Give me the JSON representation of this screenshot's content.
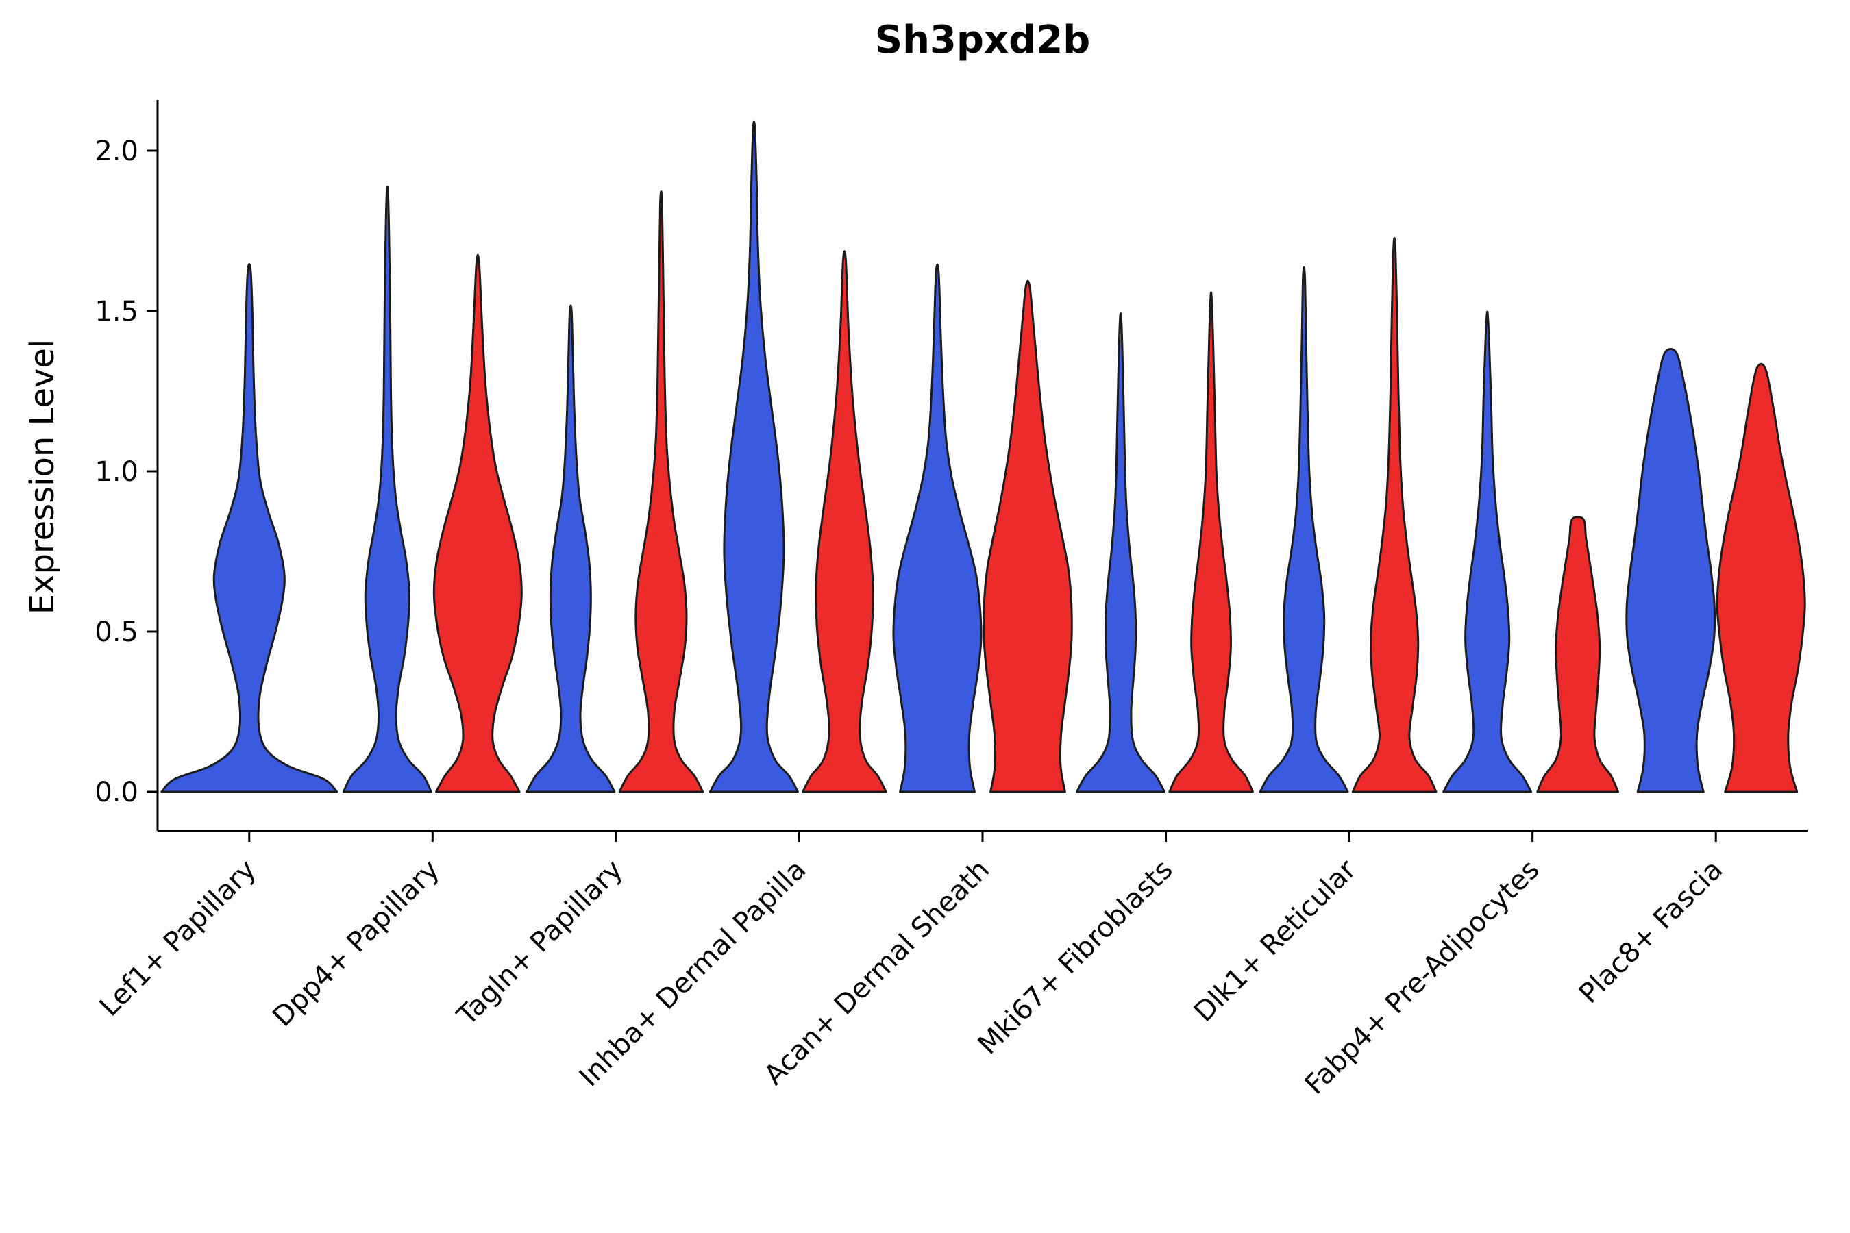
{
  "chart_data": {
    "type": "violin",
    "title": "Sh3pxd2b",
    "ylabel": "Expression Level",
    "xlabel": "",
    "ylim": [
      0,
      2.1
    ],
    "grid": false,
    "legend": "none",
    "yticks": [
      0.0,
      0.5,
      1.0,
      1.5,
      2.0
    ],
    "ytick_labels": [
      "0.0",
      "0.5",
      "1.0",
      "1.5",
      "2.0"
    ],
    "categories": [
      "Lef1+ Papillary",
      "Dpp4+ Papillary",
      "Tagln+ Papillary",
      "Inhba+ Dermal Papilla",
      "Acan+ Dermal Sheath",
      "Mki67+ Fibroblasts",
      "Dlk1+ Reticular",
      "Fabp4+ Pre-Adipocytes",
      "Plac8+ Fascia"
    ],
    "group_colors": {
      "blue": "#3A5BE0",
      "red": "#EE2B2B"
    },
    "outline_color": "#1c1c1c",
    "axis_color": "#000000",
    "violins": [
      {
        "category": "Lef1+ Papillary",
        "group": "blue",
        "side": 0,
        "span": 2,
        "max": 1.63,
        "profile": [
          [
            0,
            1.0
          ],
          [
            0.04,
            0.85
          ],
          [
            0.08,
            0.45
          ],
          [
            0.13,
            0.2
          ],
          [
            0.2,
            0.11
          ],
          [
            0.3,
            0.12
          ],
          [
            0.4,
            0.2
          ],
          [
            0.5,
            0.3
          ],
          [
            0.6,
            0.38
          ],
          [
            0.68,
            0.4
          ],
          [
            0.78,
            0.33
          ],
          [
            0.88,
            0.21
          ],
          [
            0.98,
            0.12
          ],
          [
            1.12,
            0.075
          ],
          [
            1.3,
            0.05
          ],
          [
            1.5,
            0.035
          ],
          [
            1.63,
            0.015
          ]
        ]
      },
      {
        "category": "Dpp4+ Papillary",
        "group": "blue",
        "side": -1,
        "span": 1,
        "max": 1.85,
        "profile": [
          [
            0,
            1.0
          ],
          [
            0.05,
            0.82
          ],
          [
            0.1,
            0.48
          ],
          [
            0.16,
            0.26
          ],
          [
            0.24,
            0.2
          ],
          [
            0.33,
            0.26
          ],
          [
            0.42,
            0.38
          ],
          [
            0.52,
            0.47
          ],
          [
            0.62,
            0.5
          ],
          [
            0.72,
            0.43
          ],
          [
            0.82,
            0.3
          ],
          [
            0.92,
            0.19
          ],
          [
            1.05,
            0.12
          ],
          [
            1.25,
            0.08
          ],
          [
            1.55,
            0.06
          ],
          [
            1.85,
            0.02
          ]
        ]
      },
      {
        "category": "Dpp4+ Papillary",
        "group": "red",
        "side": 1,
        "span": 1,
        "max": 1.65,
        "profile": [
          [
            0,
            0.95
          ],
          [
            0.05,
            0.75
          ],
          [
            0.1,
            0.48
          ],
          [
            0.16,
            0.34
          ],
          [
            0.24,
            0.38
          ],
          [
            0.33,
            0.56
          ],
          [
            0.42,
            0.78
          ],
          [
            0.52,
            0.93
          ],
          [
            0.62,
            1.0
          ],
          [
            0.72,
            0.94
          ],
          [
            0.82,
            0.78
          ],
          [
            0.92,
            0.58
          ],
          [
            1.02,
            0.4
          ],
          [
            1.14,
            0.27
          ],
          [
            1.28,
            0.17
          ],
          [
            1.45,
            0.1
          ],
          [
            1.65,
            0.03
          ]
        ]
      },
      {
        "category": "Tagln+ Papillary",
        "group": "blue",
        "side": -1,
        "span": 1,
        "max": 1.5,
        "profile": [
          [
            0,
            1.0
          ],
          [
            0.05,
            0.8
          ],
          [
            0.1,
            0.48
          ],
          [
            0.16,
            0.28
          ],
          [
            0.24,
            0.22
          ],
          [
            0.33,
            0.28
          ],
          [
            0.42,
            0.37
          ],
          [
            0.52,
            0.44
          ],
          [
            0.62,
            0.46
          ],
          [
            0.72,
            0.42
          ],
          [
            0.82,
            0.32
          ],
          [
            0.92,
            0.2
          ],
          [
            1.04,
            0.13
          ],
          [
            1.2,
            0.08
          ],
          [
            1.36,
            0.05
          ],
          [
            1.5,
            0.02
          ]
        ]
      },
      {
        "category": "Tagln+ Papillary",
        "group": "red",
        "side": 1,
        "span": 1,
        "max": 1.84,
        "profile": [
          [
            0,
            0.95
          ],
          [
            0.05,
            0.76
          ],
          [
            0.1,
            0.46
          ],
          [
            0.16,
            0.3
          ],
          [
            0.25,
            0.3
          ],
          [
            0.35,
            0.42
          ],
          [
            0.45,
            0.54
          ],
          [
            0.55,
            0.58
          ],
          [
            0.65,
            0.53
          ],
          [
            0.75,
            0.41
          ],
          [
            0.85,
            0.29
          ],
          [
            0.97,
            0.19
          ],
          [
            1.1,
            0.12
          ],
          [
            1.3,
            0.08
          ],
          [
            1.58,
            0.05
          ],
          [
            1.84,
            0.02
          ]
        ]
      },
      {
        "category": "Inhba+ Dermal Papilla",
        "group": "blue",
        "side": -1,
        "span": 1,
        "max": 2.07,
        "profile": [
          [
            0,
            1.0
          ],
          [
            0.05,
            0.8
          ],
          [
            0.1,
            0.48
          ],
          [
            0.18,
            0.3
          ],
          [
            0.3,
            0.35
          ],
          [
            0.45,
            0.5
          ],
          [
            0.6,
            0.62
          ],
          [
            0.75,
            0.68
          ],
          [
            0.9,
            0.64
          ],
          [
            1.05,
            0.54
          ],
          [
            1.2,
            0.4
          ],
          [
            1.35,
            0.26
          ],
          [
            1.52,
            0.15
          ],
          [
            1.7,
            0.09
          ],
          [
            1.9,
            0.06
          ],
          [
            2.07,
            0.02
          ]
        ]
      },
      {
        "category": "Inhba+ Dermal Papilla",
        "group": "red",
        "side": 1,
        "span": 1,
        "max": 1.66,
        "profile": [
          [
            0,
            0.95
          ],
          [
            0.05,
            0.76
          ],
          [
            0.1,
            0.48
          ],
          [
            0.18,
            0.35
          ],
          [
            0.28,
            0.4
          ],
          [
            0.4,
            0.54
          ],
          [
            0.52,
            0.63
          ],
          [
            0.64,
            0.65
          ],
          [
            0.76,
            0.59
          ],
          [
            0.88,
            0.48
          ],
          [
            1.0,
            0.36
          ],
          [
            1.12,
            0.26
          ],
          [
            1.26,
            0.17
          ],
          [
            1.45,
            0.09
          ],
          [
            1.66,
            0.03
          ]
        ]
      },
      {
        "category": "Acan+ Dermal Sheath",
        "group": "blue",
        "side": -1,
        "span": 1,
        "max": 1.62,
        "profile": [
          [
            0,
            0.85
          ],
          [
            0.08,
            0.74
          ],
          [
            0.18,
            0.73
          ],
          [
            0.28,
            0.82
          ],
          [
            0.38,
            0.93
          ],
          [
            0.48,
            1.0
          ],
          [
            0.58,
            0.97
          ],
          [
            0.68,
            0.88
          ],
          [
            0.78,
            0.7
          ],
          [
            0.88,
            0.5
          ],
          [
            0.98,
            0.33
          ],
          [
            1.1,
            0.2
          ],
          [
            1.25,
            0.13
          ],
          [
            1.42,
            0.08
          ],
          [
            1.62,
            0.03
          ]
        ]
      },
      {
        "category": "Acan+ Dermal Sheath",
        "group": "red",
        "side": 1,
        "span": 1,
        "max": 1.58,
        "profile": [
          [
            0,
            0.85
          ],
          [
            0.08,
            0.75
          ],
          [
            0.18,
            0.76
          ],
          [
            0.28,
            0.85
          ],
          [
            0.38,
            0.94
          ],
          [
            0.48,
            1.0
          ],
          [
            0.6,
            0.99
          ],
          [
            0.7,
            0.92
          ],
          [
            0.8,
            0.78
          ],
          [
            0.9,
            0.63
          ],
          [
            1.0,
            0.5
          ],
          [
            1.1,
            0.39
          ],
          [
            1.22,
            0.29
          ],
          [
            1.35,
            0.2
          ],
          [
            1.47,
            0.12
          ],
          [
            1.58,
            0.04
          ]
        ]
      },
      {
        "category": "Mki67+ Fibroblasts",
        "group": "blue",
        "side": -1,
        "span": 1,
        "max": 1.46,
        "profile": [
          [
            0,
            1.0
          ],
          [
            0.05,
            0.8
          ],
          [
            0.1,
            0.48
          ],
          [
            0.16,
            0.28
          ],
          [
            0.25,
            0.24
          ],
          [
            0.35,
            0.29
          ],
          [
            0.45,
            0.34
          ],
          [
            0.55,
            0.34
          ],
          [
            0.65,
            0.29
          ],
          [
            0.75,
            0.21
          ],
          [
            0.87,
            0.14
          ],
          [
            1.0,
            0.1
          ],
          [
            1.2,
            0.07
          ],
          [
            1.46,
            0.02
          ]
        ]
      },
      {
        "category": "Mki67+ Fibroblasts",
        "group": "red",
        "side": 1,
        "span": 1,
        "max": 1.52,
        "profile": [
          [
            0,
            0.95
          ],
          [
            0.05,
            0.78
          ],
          [
            0.1,
            0.48
          ],
          [
            0.16,
            0.3
          ],
          [
            0.25,
            0.3
          ],
          [
            0.35,
            0.39
          ],
          [
            0.45,
            0.45
          ],
          [
            0.55,
            0.43
          ],
          [
            0.65,
            0.36
          ],
          [
            0.75,
            0.27
          ],
          [
            0.87,
            0.18
          ],
          [
            1.0,
            0.12
          ],
          [
            1.22,
            0.08
          ],
          [
            1.52,
            0.02
          ]
        ]
      },
      {
        "category": "Dlk1+ Reticular",
        "group": "blue",
        "side": -1,
        "span": 1,
        "max": 1.61,
        "profile": [
          [
            0,
            1.0
          ],
          [
            0.05,
            0.8
          ],
          [
            0.1,
            0.48
          ],
          [
            0.16,
            0.28
          ],
          [
            0.25,
            0.27
          ],
          [
            0.35,
            0.36
          ],
          [
            0.45,
            0.44
          ],
          [
            0.55,
            0.46
          ],
          [
            0.65,
            0.4
          ],
          [
            0.75,
            0.29
          ],
          [
            0.86,
            0.19
          ],
          [
            1.0,
            0.12
          ],
          [
            1.2,
            0.08
          ],
          [
            1.4,
            0.05
          ],
          [
            1.61,
            0.02
          ]
        ]
      },
      {
        "category": "Dlk1+ Reticular",
        "group": "red",
        "side": 1,
        "span": 1,
        "max": 1.7,
        "profile": [
          [
            0,
            0.95
          ],
          [
            0.05,
            0.78
          ],
          [
            0.1,
            0.48
          ],
          [
            0.17,
            0.34
          ],
          [
            0.27,
            0.42
          ],
          [
            0.37,
            0.51
          ],
          [
            0.47,
            0.54
          ],
          [
            0.57,
            0.49
          ],
          [
            0.67,
            0.39
          ],
          [
            0.77,
            0.29
          ],
          [
            0.9,
            0.19
          ],
          [
            1.05,
            0.13
          ],
          [
            1.25,
            0.09
          ],
          [
            1.48,
            0.06
          ],
          [
            1.7,
            0.02
          ]
        ]
      },
      {
        "category": "Fabp4+ Pre-Adipocytes",
        "group": "blue",
        "side": -1,
        "span": 1,
        "max": 1.47,
        "profile": [
          [
            0,
            1.0
          ],
          [
            0.05,
            0.8
          ],
          [
            0.1,
            0.5
          ],
          [
            0.17,
            0.32
          ],
          [
            0.27,
            0.35
          ],
          [
            0.37,
            0.44
          ],
          [
            0.47,
            0.5
          ],
          [
            0.57,
            0.47
          ],
          [
            0.67,
            0.39
          ],
          [
            0.77,
            0.29
          ],
          [
            0.9,
            0.19
          ],
          [
            1.05,
            0.12
          ],
          [
            1.25,
            0.08
          ],
          [
            1.47,
            0.02
          ]
        ]
      },
      {
        "category": "Fabp4+ Pre-Adipocytes",
        "group": "red",
        "side": 1,
        "span": 1,
        "max": 0.85,
        "profile": [
          [
            0,
            0.92
          ],
          [
            0.05,
            0.76
          ],
          [
            0.1,
            0.5
          ],
          [
            0.17,
            0.38
          ],
          [
            0.26,
            0.42
          ],
          [
            0.35,
            0.47
          ],
          [
            0.45,
            0.5
          ],
          [
            0.55,
            0.45
          ],
          [
            0.64,
            0.36
          ],
          [
            0.72,
            0.27
          ],
          [
            0.79,
            0.19
          ],
          [
            0.85,
            0.13
          ]
        ]
      },
      {
        "category": "Plac8+ Fascia",
        "group": "blue",
        "side": -1,
        "span": 1,
        "max": 1.37,
        "profile": [
          [
            0,
            0.75
          ],
          [
            0.08,
            0.62
          ],
          [
            0.18,
            0.6
          ],
          [
            0.28,
            0.72
          ],
          [
            0.38,
            0.88
          ],
          [
            0.48,
            0.99
          ],
          [
            0.58,
            1.0
          ],
          [
            0.68,
            0.93
          ],
          [
            0.78,
            0.83
          ],
          [
            0.88,
            0.74
          ],
          [
            0.98,
            0.66
          ],
          [
            1.08,
            0.56
          ],
          [
            1.18,
            0.44
          ],
          [
            1.28,
            0.3
          ],
          [
            1.37,
            0.13
          ]
        ]
      },
      {
        "category": "Plac8+ Fascia",
        "group": "red",
        "side": 1,
        "span": 1,
        "max": 1.32,
        "profile": [
          [
            0,
            0.82
          ],
          [
            0.08,
            0.66
          ],
          [
            0.18,
            0.62
          ],
          [
            0.28,
            0.7
          ],
          [
            0.38,
            0.84
          ],
          [
            0.48,
            0.94
          ],
          [
            0.58,
            1.0
          ],
          [
            0.68,
            0.96
          ],
          [
            0.78,
            0.86
          ],
          [
            0.88,
            0.72
          ],
          [
            0.98,
            0.56
          ],
          [
            1.08,
            0.42
          ],
          [
            1.2,
            0.28
          ],
          [
            1.32,
            0.1
          ]
        ]
      }
    ]
  }
}
